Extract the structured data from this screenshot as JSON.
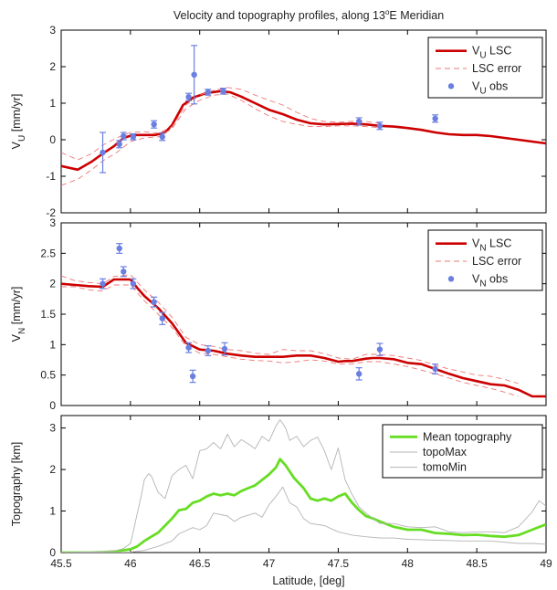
{
  "figure": {
    "title_main": "Velocity and topography profiles, along 13",
    "title_sup": "o",
    "title_end": "E Meridian",
    "xlabel": "Latitude, [deg]"
  },
  "chart_data": [
    {
      "id": "vu",
      "type": "line",
      "ylabel_main": "V",
      "ylabel_sub": "U",
      "ylabel_end": " [mm/yr]",
      "xlim": [
        45.5,
        49
      ],
      "ylim": [
        -2,
        3
      ],
      "xticks": [
        45.5,
        46,
        46.5,
        47,
        47.5,
        48,
        48.5,
        49
      ],
      "xtick_labels": [
        "",
        "",
        "",
        "",
        "",
        "",
        "",
        ""
      ],
      "yticks": [
        -2,
        -1,
        0,
        1,
        2,
        3
      ],
      "legend": [
        {
          "main": "V",
          "sub": "U",
          "end": " LSC",
          "kind": "line",
          "color": "#cc0000"
        },
        {
          "main": "LSC error",
          "sub": "",
          "end": "",
          "kind": "dash",
          "color": "#ee7777"
        },
        {
          "main": "V",
          "sub": "U",
          "end": " obs",
          "kind": "dot",
          "color": "#6a7fe0"
        }
      ],
      "series": [
        {
          "role": "lsc",
          "x": [
            45.5,
            45.62,
            45.72,
            45.8,
            45.88,
            45.95,
            46.02,
            46.1,
            46.18,
            46.25,
            46.3,
            46.38,
            46.45,
            46.55,
            46.65,
            46.72,
            46.8,
            46.9,
            47.0,
            47.1,
            47.2,
            47.3,
            47.4,
            47.5,
            47.6,
            47.7,
            47.8,
            47.9,
            48.0,
            48.1,
            48.2,
            48.3,
            48.4,
            48.5,
            48.6,
            48.7,
            48.8,
            48.9,
            49.0
          ],
          "y": [
            -0.72,
            -0.82,
            -0.6,
            -0.38,
            -0.18,
            0.05,
            0.13,
            0.13,
            0.13,
            0.2,
            0.4,
            0.95,
            1.15,
            1.28,
            1.33,
            1.3,
            1.18,
            1.0,
            0.82,
            0.7,
            0.55,
            0.45,
            0.42,
            0.43,
            0.44,
            0.42,
            0.38,
            0.36,
            0.32,
            0.27,
            0.2,
            0.15,
            0.13,
            0.13,
            0.1,
            0.05,
            0.0,
            -0.05,
            -0.1
          ]
        },
        {
          "role": "err_upper",
          "x": [
            45.5,
            45.62,
            45.72,
            45.8,
            45.9,
            46.0,
            46.1,
            46.2,
            46.3,
            46.4,
            46.5,
            46.6,
            46.7,
            46.8,
            46.9,
            47.0,
            47.1,
            47.2,
            47.3,
            47.4,
            47.5,
            47.6,
            47.7,
            47.8
          ],
          "y": [
            -0.35,
            -0.55,
            -0.38,
            -0.15,
            0.05,
            0.2,
            0.22,
            0.18,
            0.35,
            0.95,
            1.22,
            1.35,
            1.43,
            1.38,
            1.22,
            1.08,
            0.95,
            0.75,
            0.58,
            0.5,
            0.48,
            0.5,
            0.5,
            0.45
          ]
        },
        {
          "role": "err_lower",
          "x": [
            45.5,
            45.62,
            45.72,
            45.8,
            45.9,
            46.0,
            46.1,
            46.2,
            46.3,
            46.4,
            46.5,
            46.6,
            46.7,
            46.8,
            46.9,
            47.0,
            47.1,
            47.2,
            47.3,
            47.4,
            47.5,
            47.6,
            47.7,
            47.8
          ],
          "y": [
            -1.25,
            -1.08,
            -0.82,
            -0.58,
            -0.35,
            -0.05,
            0.05,
            0.08,
            0.3,
            0.85,
            1.08,
            1.22,
            1.25,
            1.08,
            0.85,
            0.65,
            0.5,
            0.42,
            0.36,
            0.36,
            0.38,
            0.38,
            0.36,
            0.33
          ]
        }
      ],
      "obs": [
        {
          "x": 45.8,
          "y": -0.35,
          "err": 0.55
        },
        {
          "x": 45.92,
          "y": -0.12,
          "err": 0.1
        },
        {
          "x": 45.95,
          "y": 0.1,
          "err": 0.1
        },
        {
          "x": 46.02,
          "y": 0.08,
          "err": 0.08
        },
        {
          "x": 46.17,
          "y": 0.42,
          "err": 0.1
        },
        {
          "x": 46.23,
          "y": 0.08,
          "err": 0.1
        },
        {
          "x": 46.42,
          "y": 1.17,
          "err": 0.1
        },
        {
          "x": 46.46,
          "y": 1.78,
          "err": 0.8
        },
        {
          "x": 46.56,
          "y": 1.3,
          "err": 0.08
        },
        {
          "x": 46.67,
          "y": 1.33,
          "err": 0.08
        },
        {
          "x": 47.65,
          "y": 0.5,
          "err": 0.1
        },
        {
          "x": 47.8,
          "y": 0.38,
          "err": 0.1
        },
        {
          "x": 48.2,
          "y": 0.58,
          "err": 0.1
        }
      ]
    },
    {
      "id": "vn",
      "type": "line",
      "ylabel_main": "V",
      "ylabel_sub": "N",
      "ylabel_end": " [mm/yr]",
      "xlim": [
        45.5,
        49
      ],
      "ylim": [
        0,
        3
      ],
      "xticks": [
        45.5,
        46,
        46.5,
        47,
        47.5,
        48,
        48.5,
        49
      ],
      "xtick_labels": [
        "",
        "",
        "",
        "",
        "",
        "",
        "",
        ""
      ],
      "yticks": [
        0,
        0.5,
        1,
        1.5,
        2,
        2.5,
        3
      ],
      "legend": [
        {
          "main": "V",
          "sub": "N",
          "end": " LSC",
          "kind": "line",
          "color": "#cc0000"
        },
        {
          "main": "LSC error",
          "sub": "",
          "end": "",
          "kind": "dash",
          "color": "#ee7777"
        },
        {
          "main": "V",
          "sub": "N",
          "end": " obs",
          "kind": "dot",
          "color": "#6a7fe0"
        }
      ],
      "series": [
        {
          "role": "lsc",
          "x": [
            45.5,
            45.6,
            45.7,
            45.8,
            45.88,
            46.0,
            46.05,
            46.1,
            46.2,
            46.3,
            46.4,
            46.5,
            46.6,
            46.7,
            46.8,
            46.9,
            47.0,
            47.1,
            47.2,
            47.3,
            47.4,
            47.5,
            47.55,
            47.6,
            47.7,
            47.75,
            47.8,
            47.9,
            48.0,
            48.1,
            48.2,
            48.3,
            48.4,
            48.5,
            48.6,
            48.7,
            48.8,
            48.9,
            49.0
          ],
          "y": [
            2.0,
            1.98,
            1.96,
            1.95,
            2.07,
            2.07,
            1.93,
            1.8,
            1.6,
            1.35,
            1.03,
            0.92,
            0.9,
            0.85,
            0.82,
            0.8,
            0.8,
            0.8,
            0.82,
            0.82,
            0.78,
            0.72,
            0.73,
            0.73,
            0.77,
            0.78,
            0.78,
            0.76,
            0.7,
            0.68,
            0.6,
            0.52,
            0.45,
            0.4,
            0.35,
            0.33,
            0.26,
            0.15,
            0.15
          ]
        },
        {
          "role": "err_upper",
          "x": [
            45.5,
            45.6,
            45.7,
            45.8,
            45.88,
            46.0,
            46.1,
            46.2,
            46.3,
            46.4,
            46.5,
            46.6,
            46.7,
            46.8,
            46.9,
            47.0,
            47.1,
            47.2,
            47.3,
            47.4,
            47.5,
            47.6,
            47.7,
            47.8,
            47.9,
            48.0,
            48.1,
            48.2,
            48.3,
            48.4,
            48.5,
            48.6,
            48.7,
            48.8
          ],
          "y": [
            2.13,
            2.05,
            2.02,
            2.0,
            2.12,
            2.15,
            1.9,
            1.7,
            1.45,
            1.12,
            1.0,
            0.97,
            0.92,
            0.9,
            0.86,
            0.84,
            0.92,
            0.9,
            0.9,
            0.85,
            0.78,
            0.76,
            0.84,
            0.84,
            0.82,
            0.78,
            0.74,
            0.66,
            0.6,
            0.55,
            0.5,
            0.48,
            0.43,
            0.36
          ]
        },
        {
          "role": "err_lower",
          "x": [
            45.5,
            45.6,
            45.7,
            45.8,
            45.88,
            46.0,
            46.1,
            46.2,
            46.3,
            46.4,
            46.5,
            46.6,
            46.7,
            46.8,
            46.9,
            47.0,
            47.1,
            47.2,
            47.3,
            47.4,
            47.5,
            47.6,
            47.7,
            47.8,
            47.9,
            48.0,
            48.1,
            48.2,
            48.3,
            48.4,
            48.5,
            48.6,
            48.7,
            48.8
          ],
          "y": [
            1.95,
            1.95,
            1.9,
            1.88,
            1.98,
            1.98,
            1.72,
            1.5,
            1.28,
            0.98,
            0.86,
            0.84,
            0.8,
            0.76,
            0.74,
            0.73,
            0.7,
            0.72,
            0.75,
            0.73,
            0.68,
            0.68,
            0.72,
            0.72,
            0.68,
            0.64,
            0.58,
            0.52,
            0.45,
            0.38,
            0.33,
            0.28,
            0.22,
            0.15
          ]
        }
      ],
      "obs": [
        {
          "x": 45.8,
          "y": 2.0,
          "err": 0.08
        },
        {
          "x": 45.92,
          "y": 2.58,
          "err": 0.08
        },
        {
          "x": 45.95,
          "y": 2.2,
          "err": 0.08
        },
        {
          "x": 46.02,
          "y": 2.0,
          "err": 0.08
        },
        {
          "x": 46.17,
          "y": 1.7,
          "err": 0.08
        },
        {
          "x": 46.23,
          "y": 1.43,
          "err": 0.1
        },
        {
          "x": 46.42,
          "y": 0.95,
          "err": 0.08
        },
        {
          "x": 46.45,
          "y": 0.48,
          "err": 0.1
        },
        {
          "x": 46.56,
          "y": 0.9,
          "err": 0.08
        },
        {
          "x": 46.68,
          "y": 0.93,
          "err": 0.1
        },
        {
          "x": 47.65,
          "y": 0.52,
          "err": 0.1
        },
        {
          "x": 47.8,
          "y": 0.92,
          "err": 0.1
        },
        {
          "x": 48.2,
          "y": 0.6,
          "err": 0.08
        }
      ]
    },
    {
      "id": "topo",
      "type": "line",
      "ylabel_main": "Topography [km]",
      "ylabel_sub": "",
      "ylabel_end": "",
      "xlim": [
        45.5,
        49
      ],
      "ylim": [
        0,
        3.3
      ],
      "xticks": [
        45.5,
        46,
        46.5,
        47,
        47.5,
        48,
        48.5,
        49
      ],
      "xtick_labels": [
        "45.5",
        "46",
        "46.5",
        "47",
        "47.5",
        "48",
        "48.5",
        "49"
      ],
      "yticks": [
        0,
        1,
        2,
        3
      ],
      "legend": [
        {
          "main": "Mean topography",
          "sub": "",
          "end": "",
          "kind": "line",
          "color": "#66dd22"
        },
        {
          "main": "topoMax",
          "sub": "",
          "end": "",
          "kind": "thin",
          "color": "#b4b4b4"
        },
        {
          "main": "tomoMin",
          "sub": "",
          "end": "",
          "kind": "thin",
          "color": "#b4b4b4"
        }
      ],
      "series": [
        {
          "role": "mean",
          "x": [
            45.5,
            45.7,
            45.8,
            45.9,
            46.0,
            46.05,
            46.1,
            46.15,
            46.2,
            46.25,
            46.3,
            46.35,
            46.4,
            46.45,
            46.5,
            46.55,
            46.6,
            46.65,
            46.7,
            46.75,
            46.8,
            46.85,
            46.9,
            46.95,
            47.0,
            47.05,
            47.08,
            47.12,
            47.18,
            47.25,
            47.3,
            47.35,
            47.4,
            47.45,
            47.5,
            47.55,
            47.6,
            47.65,
            47.7,
            47.75,
            47.8,
            47.9,
            48.0,
            48.1,
            48.2,
            48.3,
            48.4,
            48.5,
            48.6,
            48.7,
            48.8,
            48.9,
            49.0
          ],
          "y": [
            0.0,
            0.0,
            0.01,
            0.03,
            0.08,
            0.15,
            0.28,
            0.38,
            0.48,
            0.65,
            0.82,
            1.02,
            1.05,
            1.2,
            1.25,
            1.35,
            1.42,
            1.38,
            1.42,
            1.38,
            1.48,
            1.55,
            1.62,
            1.75,
            1.88,
            2.05,
            2.25,
            2.1,
            1.8,
            1.55,
            1.3,
            1.25,
            1.3,
            1.25,
            1.35,
            1.42,
            1.2,
            1.02,
            0.88,
            0.82,
            0.75,
            0.62,
            0.55,
            0.55,
            0.47,
            0.45,
            0.42,
            0.43,
            0.4,
            0.38,
            0.42,
            0.55,
            0.68
          ]
        },
        {
          "role": "max",
          "x": [
            45.5,
            45.8,
            45.9,
            45.95,
            46.0,
            46.02,
            46.05,
            46.08,
            46.1,
            46.13,
            46.15,
            46.2,
            46.25,
            46.3,
            46.35,
            46.4,
            46.45,
            46.5,
            46.55,
            46.6,
            46.65,
            46.7,
            46.75,
            46.8,
            46.85,
            46.9,
            46.95,
            47.0,
            47.05,
            47.08,
            47.12,
            47.15,
            47.2,
            47.25,
            47.3,
            47.35,
            47.4,
            47.45,
            47.5,
            47.55,
            47.6,
            47.65,
            47.7,
            47.8,
            47.9,
            48.0,
            48.1,
            48.2,
            48.3,
            48.4,
            48.5,
            48.6,
            48.7,
            48.8,
            48.9,
            48.95,
            49.0
          ],
          "y": [
            0.0,
            0.02,
            0.05,
            0.1,
            0.22,
            0.5,
            0.95,
            1.4,
            1.75,
            1.9,
            1.85,
            1.45,
            1.3,
            1.85,
            2.0,
            2.1,
            1.78,
            2.45,
            2.5,
            2.65,
            2.5,
            2.85,
            2.55,
            2.72,
            2.62,
            2.5,
            2.8,
            2.68,
            3.05,
            3.2,
            3.0,
            2.7,
            2.8,
            2.55,
            2.7,
            2.78,
            2.45,
            2.0,
            2.52,
            1.75,
            1.4,
            1.1,
            0.95,
            0.7,
            0.7,
            0.62,
            0.6,
            0.62,
            0.5,
            0.48,
            0.5,
            0.5,
            0.48,
            0.62,
            0.98,
            1.25,
            1.12
          ]
        },
        {
          "role": "min",
          "x": [
            45.5,
            45.9,
            46.0,
            46.1,
            46.2,
            46.3,
            46.35,
            46.45,
            46.5,
            46.55,
            46.6,
            46.7,
            46.75,
            46.8,
            46.9,
            46.95,
            47.0,
            47.05,
            47.1,
            47.15,
            47.2,
            47.25,
            47.3,
            47.4,
            47.5,
            47.6,
            47.7,
            47.8,
            47.9,
            48.0,
            48.2,
            48.4,
            48.6,
            48.8,
            48.9,
            49.0
          ],
          "y": [
            0.0,
            0.0,
            0.01,
            0.05,
            0.15,
            0.28,
            0.45,
            0.6,
            0.55,
            0.65,
            0.95,
            0.88,
            0.75,
            0.85,
            0.95,
            0.85,
            1.15,
            1.35,
            1.58,
            1.2,
            1.1,
            0.82,
            0.7,
            0.65,
            0.5,
            0.42,
            0.38,
            0.35,
            0.35,
            0.32,
            0.3,
            0.28,
            0.28,
            0.22,
            0.22,
            0.2
          ]
        }
      ]
    }
  ]
}
